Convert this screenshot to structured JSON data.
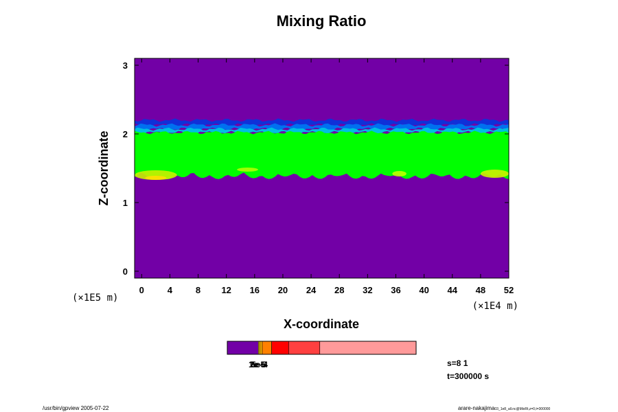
{
  "chart_data": {
    "type": "heatmap",
    "title": "Mixing Ratio",
    "xlabel": "X-coordinate",
    "ylabel": "Z-coordinate",
    "x_unit": "(×1E4 m)",
    "y_unit": "(×1E5 m)",
    "xlim": [
      -1,
      52
    ],
    "ylim": [
      -0.1,
      3.1
    ],
    "x_ticks": [
      0,
      4,
      8,
      12,
      16,
      20,
      24,
      28,
      32,
      36,
      40,
      44,
      48,
      52
    ],
    "y_ticks": [
      0,
      1,
      2,
      3
    ],
    "background_color": "#7200a6",
    "layers": [
      {
        "z_bottom": 2.13,
        "z_top": 2.2,
        "color": "#1030d8"
      },
      {
        "z_bottom": 2.07,
        "z_top": 2.13,
        "color": "#0070f0"
      },
      {
        "z_bottom": 2.02,
        "z_top": 2.07,
        "color": "#00c0e0"
      },
      {
        "z_bottom": 1.45,
        "z_top": 2.02,
        "color": "#00ff00"
      }
    ],
    "yellow_patches": [
      {
        "x": 2,
        "z": 1.4,
        "w": 6,
        "h": 0.14,
        "color": "#c8f000"
      },
      {
        "x": 2,
        "z": 1.36,
        "w": 3,
        "h": 0.06,
        "color": "#ffe000"
      },
      {
        "x": 15,
        "z": 1.48,
        "w": 3,
        "h": 0.06,
        "color": "#b0ff00"
      },
      {
        "x": 36.5,
        "z": 1.42,
        "w": 2,
        "h": 0.08,
        "color": "#c0ff00"
      },
      {
        "x": 50,
        "z": 1.42,
        "w": 4,
        "h": 0.12,
        "color": "#d0f000"
      }
    ],
    "colorbar": {
      "segments": [
        {
          "color": "#7200a6",
          "width": 0.165
        },
        {
          "color": "#ffe000",
          "width": 0.008
        },
        {
          "color": "#ffb000",
          "width": 0.012
        },
        {
          "color": "#ff8000",
          "width": 0.05
        },
        {
          "color": "#ff0000",
          "width": 0.09
        },
        {
          "color": "#ff4040",
          "width": 0.165
        },
        {
          "color": "#ff9a9a",
          "width": 0.51
        }
      ],
      "labels": [
        "1e-5",
        "2e-5",
        "5e-4"
      ]
    },
    "annotations": [
      "s=8 1",
      "t=300000 s"
    ]
  },
  "footer": {
    "left": "/usr/bin/gpview 2005-07-22",
    "right": "arare-nakajima",
    "right_small": "03_1e8_all.nc@MixRt,z=0,t=300000"
  }
}
